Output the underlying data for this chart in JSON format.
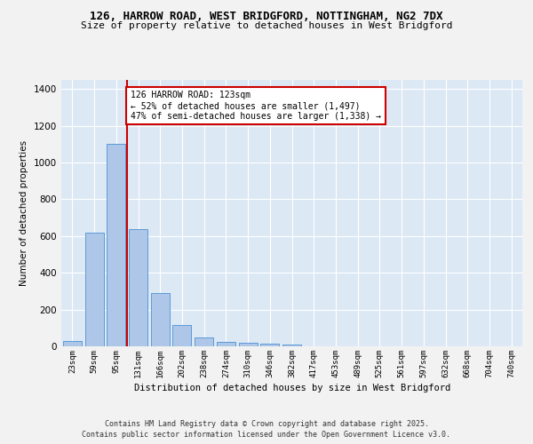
{
  "title_line1": "126, HARROW ROAD, WEST BRIDGFORD, NOTTINGHAM, NG2 7DX",
  "title_line2": "Size of property relative to detached houses in West Bridgford",
  "xlabel": "Distribution of detached houses by size in West Bridgford",
  "ylabel": "Number of detached properties",
  "bin_labels": [
    "23sqm",
    "59sqm",
    "95sqm",
    "131sqm",
    "166sqm",
    "202sqm",
    "238sqm",
    "274sqm",
    "310sqm",
    "346sqm",
    "382sqm",
    "417sqm",
    "453sqm",
    "489sqm",
    "525sqm",
    "561sqm",
    "597sqm",
    "632sqm",
    "668sqm",
    "704sqm",
    "740sqm"
  ],
  "bar_heights": [
    30,
    620,
    1100,
    640,
    290,
    115,
    50,
    25,
    20,
    15,
    10,
    0,
    0,
    0,
    0,
    0,
    0,
    0,
    0,
    0,
    0
  ],
  "bar_color": "#aec6e8",
  "bar_edge_color": "#5b9bd5",
  "background_color": "#dde8f5",
  "grid_color": "#ffffff",
  "annotation_text": "126 HARROW ROAD: 123sqm\n← 52% of detached houses are smaller (1,497)\n47% of semi-detached houses are larger (1,338) →",
  "annotation_box_color": "#ffffff",
  "annotation_box_edge": "#cc0000",
  "red_line_color": "#cc0000",
  "red_line_x": 2.5,
  "ylim": [
    0,
    1450
  ],
  "yticks": [
    0,
    200,
    400,
    600,
    800,
    1000,
    1200,
    1400
  ],
  "footer_line1": "Contains HM Land Registry data © Crown copyright and database right 2025.",
  "footer_line2": "Contains public sector information licensed under the Open Government Licence v3.0.",
  "fig_bg": "#f2f2f2"
}
